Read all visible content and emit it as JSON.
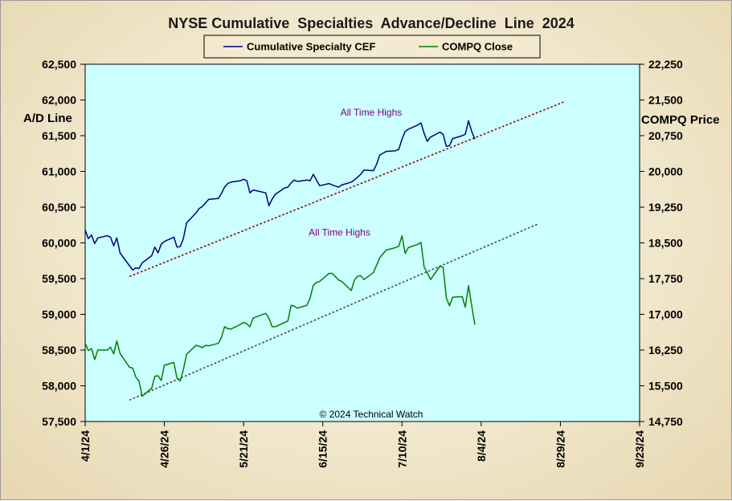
{
  "chart_data": {
    "type": "line",
    "title": "NYSE Cumulative  Specialties  Advance/Decline  Line  2024",
    "ylabel_left": "A/D Line",
    "ylabel_right": "COMPQ Price",
    "copyright": "© 2024 Technical Watch",
    "x_ticks": [
      "4/1/24",
      "4/26/24",
      "5/21/24",
      "6/15/24",
      "7/10/24",
      "8/4/24",
      "8/29/24",
      "9/23/24"
    ],
    "xlim": [
      "4/1/24",
      "9/23/24"
    ],
    "ylim_left": [
      57500,
      62500
    ],
    "ylim_right": [
      14750,
      22250
    ],
    "y_ticks_left": [
      "57,500",
      "58,000",
      "58,500",
      "59,000",
      "59,500",
      "60,000",
      "60,500",
      "61,000",
      "61,500",
      "62,000",
      "62,500"
    ],
    "y_ticks_right": [
      "14,750",
      "15,500",
      "16,250",
      "17,000",
      "17,750",
      "18,500",
      "19,250",
      "20,000",
      "20,750",
      "21,500",
      "22,250"
    ],
    "legend": {
      "placement": "top-center",
      "entries": [
        "Cumulative Specialty CEF",
        "COMPQ Close"
      ]
    },
    "series": [
      {
        "name": "Cumulative Specialty CEF",
        "axis": "left",
        "color": "#000080",
        "points": [
          [
            "4/1/24",
            60180
          ],
          [
            "4/2/24",
            60060
          ],
          [
            "4/3/24",
            60110
          ],
          [
            "4/4/24",
            59990
          ],
          [
            "4/5/24",
            60070
          ],
          [
            "4/8/24",
            60100
          ],
          [
            "4/9/24",
            60080
          ],
          [
            "4/10/24",
            59960
          ],
          [
            "4/11/24",
            60070
          ],
          [
            "4/12/24",
            59860
          ],
          [
            "4/15/24",
            59680
          ],
          [
            "4/16/24",
            59620
          ],
          [
            "4/17/24",
            59650
          ],
          [
            "4/18/24",
            59640
          ],
          [
            "4/19/24",
            59720
          ],
          [
            "4/22/24",
            59820
          ],
          [
            "4/23/24",
            59940
          ],
          [
            "4/24/24",
            59860
          ],
          [
            "4/25/24",
            59980
          ],
          [
            "4/26/24",
            60020
          ],
          [
            "4/29/24",
            60080
          ],
          [
            "4/30/24",
            59940
          ],
          [
            "5/1/24",
            59950
          ],
          [
            "5/2/24",
            60060
          ],
          [
            "5/3/24",
            60280
          ],
          [
            "5/6/24",
            60420
          ],
          [
            "5/7/24",
            60480
          ],
          [
            "5/8/24",
            60510
          ],
          [
            "5/9/24",
            60560
          ],
          [
            "5/10/24",
            60610
          ],
          [
            "5/13/24",
            60620
          ],
          [
            "5/14/24",
            60690
          ],
          [
            "5/15/24",
            60780
          ],
          [
            "5/16/24",
            60830
          ],
          [
            "5/17/24",
            60850
          ],
          [
            "5/20/24",
            60870
          ],
          [
            "5/21/24",
            60890
          ],
          [
            "5/22/24",
            60870
          ],
          [
            "5/23/24",
            60700
          ],
          [
            "5/24/24",
            60740
          ],
          [
            "5/28/24",
            60700
          ],
          [
            "5/29/24",
            60520
          ],
          [
            "5/30/24",
            60610
          ],
          [
            "5/31/24",
            60680
          ],
          [
            "6/3/24",
            60770
          ],
          [
            "6/4/24",
            60780
          ],
          [
            "6/5/24",
            60840
          ],
          [
            "6/6/24",
            60880
          ],
          [
            "6/7/24",
            60860
          ],
          [
            "6/10/24",
            60880
          ],
          [
            "6/11/24",
            60870
          ],
          [
            "6/12/24",
            60960
          ],
          [
            "6/13/24",
            60880
          ],
          [
            "6/14/24",
            60800
          ],
          [
            "6/17/24",
            60830
          ],
          [
            "6/18/24",
            60810
          ],
          [
            "6/20/24",
            60780
          ],
          [
            "6/21/24",
            60810
          ],
          [
            "6/24/24",
            60850
          ],
          [
            "6/25/24",
            60880
          ],
          [
            "6/26/24",
            60920
          ],
          [
            "6/27/24",
            60960
          ],
          [
            "6/28/24",
            61020
          ],
          [
            "7/1/24",
            61010
          ],
          [
            "7/2/24",
            61100
          ],
          [
            "7/3/24",
            61230
          ],
          [
            "7/5/24",
            61280
          ],
          [
            "7/8/24",
            61290
          ],
          [
            "7/9/24",
            61310
          ],
          [
            "7/10/24",
            61450
          ],
          [
            "7/11/24",
            61560
          ],
          [
            "7/12/24",
            61590
          ],
          [
            "7/15/24",
            61650
          ],
          [
            "7/16/24",
            61680
          ],
          [
            "7/17/24",
            61530
          ],
          [
            "7/18/24",
            61420
          ],
          [
            "7/19/24",
            61480
          ],
          [
            "7/22/24",
            61550
          ],
          [
            "7/23/24",
            61520
          ],
          [
            "7/24/24",
            61350
          ],
          [
            "7/25/24",
            61360
          ],
          [
            "7/26/24",
            61460
          ],
          [
            "7/29/24",
            61500
          ],
          [
            "7/30/24",
            61520
          ],
          [
            "7/31/24",
            61710
          ],
          [
            "8/1/24",
            61560
          ],
          [
            "8/2/24",
            61450
          ]
        ]
      },
      {
        "name": "COMPQ Close",
        "axis": "right",
        "color": "#008000",
        "points": [
          [
            "4/1/24",
            16400
          ],
          [
            "4/2/24",
            16240
          ],
          [
            "4/3/24",
            16280
          ],
          [
            "4/4/24",
            16050
          ],
          [
            "4/5/24",
            16250
          ],
          [
            "4/8/24",
            16250
          ],
          [
            "4/9/24",
            16310
          ],
          [
            "4/10/24",
            16170
          ],
          [
            "4/11/24",
            16440
          ],
          [
            "4/12/24",
            16180
          ],
          [
            "4/15/24",
            15890
          ],
          [
            "4/16/24",
            15870
          ],
          [
            "4/17/24",
            15680
          ],
          [
            "4/18/24",
            15600
          ],
          [
            "4/19/24",
            15280
          ],
          [
            "4/22/24",
            15450
          ],
          [
            "4/23/24",
            15700
          ],
          [
            "4/24/24",
            15710
          ],
          [
            "4/25/24",
            15610
          ],
          [
            "4/26/24",
            15930
          ],
          [
            "4/29/24",
            15990
          ],
          [
            "4/30/24",
            15660
          ],
          [
            "5/1/24",
            15600
          ],
          [
            "5/2/24",
            15840
          ],
          [
            "5/3/24",
            16160
          ],
          [
            "5/6/24",
            16350
          ],
          [
            "5/7/24",
            16330
          ],
          [
            "5/8/24",
            16300
          ],
          [
            "5/9/24",
            16350
          ],
          [
            "5/10/24",
            16340
          ],
          [
            "5/13/24",
            16390
          ],
          [
            "5/14/24",
            16510
          ],
          [
            "5/15/24",
            16740
          ],
          [
            "5/16/24",
            16700
          ],
          [
            "5/17/24",
            16690
          ],
          [
            "5/20/24",
            16790
          ],
          [
            "5/21/24",
            16830
          ],
          [
            "5/22/24",
            16800
          ],
          [
            "5/23/24",
            16740
          ],
          [
            "5/24/24",
            16920
          ],
          [
            "5/28/24",
            17020
          ],
          [
            "5/29/24",
            16920
          ],
          [
            "5/30/24",
            16740
          ],
          [
            "5/31/24",
            16740
          ],
          [
            "6/3/24",
            16830
          ],
          [
            "6/4/24",
            16860
          ],
          [
            "6/5/24",
            17190
          ],
          [
            "6/6/24",
            17170
          ],
          [
            "6/7/24",
            17130
          ],
          [
            "6/10/24",
            17190
          ],
          [
            "6/11/24",
            17340
          ],
          [
            "6/12/24",
            17610
          ],
          [
            "6/13/24",
            17670
          ],
          [
            "6/14/24",
            17690
          ],
          [
            "6/17/24",
            17860
          ],
          [
            "6/18/24",
            17860
          ],
          [
            "6/20/24",
            17720
          ],
          [
            "6/21/24",
            17690
          ],
          [
            "6/24/24",
            17500
          ],
          [
            "6/25/24",
            17720
          ],
          [
            "6/26/24",
            17800
          ],
          [
            "6/27/24",
            17810
          ],
          [
            "6/28/24",
            17730
          ],
          [
            "7/1/24",
            17880
          ],
          [
            "7/2/24",
            18030
          ],
          [
            "7/3/24",
            18190
          ],
          [
            "7/5/24",
            18350
          ],
          [
            "7/8/24",
            18400
          ],
          [
            "7/9/24",
            18430
          ],
          [
            "7/10/24",
            18650
          ],
          [
            "7/11/24",
            18280
          ],
          [
            "7/12/24",
            18400
          ],
          [
            "7/15/24",
            18470
          ],
          [
            "7/16/24",
            18510
          ],
          [
            "7/17/24",
            17990
          ],
          [
            "7/18/24",
            17870
          ],
          [
            "7/19/24",
            17730
          ],
          [
            "7/22/24",
            18010
          ],
          [
            "7/23/24",
            17990
          ],
          [
            "7/24/24",
            17340
          ],
          [
            "7/25/24",
            17180
          ],
          [
            "7/26/24",
            17360
          ],
          [
            "7/29/24",
            17370
          ],
          [
            "7/30/24",
            17150
          ],
          [
            "7/31/24",
            17600
          ],
          [
            "8/1/24",
            17190
          ],
          [
            "8/2/24",
            16780
          ]
        ]
      }
    ],
    "trendlines": [
      {
        "axis": "left",
        "color": "#8b0000",
        "style": "dotted",
        "from": [
          "4/15/24",
          59530
        ],
        "to": [
          "8/30/24",
          61970
        ]
      },
      {
        "axis": "right",
        "color": "#404040",
        "style": "dotted",
        "from": [
          "4/15/24",
          15200
        ],
        "to": [
          "8/22/24",
          18900
        ]
      }
    ],
    "annotations": [
      {
        "text": "All Time Highs",
        "axis": "left",
        "x": "7/10/24",
        "y": 61780
      },
      {
        "text": "All Time Highs",
        "axis": "right",
        "x": "6/30/24",
        "y": 18650
      }
    ],
    "background_color": "#ccffff",
    "grid": false
  }
}
